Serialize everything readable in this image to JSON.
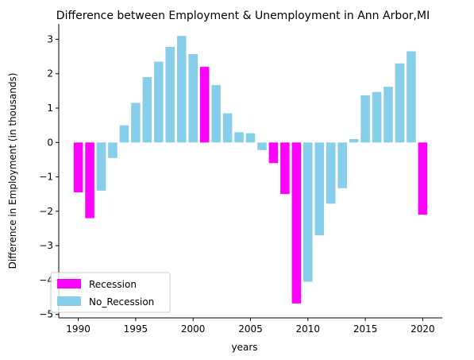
{
  "chart_data": {
    "type": "bar",
    "title": "Difference between Employment & Unemployment in Ann Arbor,MI",
    "xlabel": "years",
    "ylabel": "Difference in Employment (in thousands)",
    "x": [
      1990,
      1991,
      1992,
      1993,
      1994,
      1995,
      1996,
      1997,
      1998,
      1999,
      2000,
      2001,
      2002,
      2003,
      2004,
      2005,
      2006,
      2007,
      2008,
      2009,
      2010,
      2011,
      2012,
      2013,
      2014,
      2015,
      2016,
      2017,
      2018,
      2019,
      2020
    ],
    "values": [
      -1.45,
      -2.2,
      -1.4,
      -0.45,
      0.5,
      1.15,
      1.9,
      2.35,
      2.78,
      3.1,
      2.57,
      2.2,
      1.67,
      0.85,
      0.3,
      0.27,
      -0.22,
      -0.6,
      -1.5,
      -4.68,
      -4.05,
      -2.7,
      -1.78,
      -1.33,
      0.1,
      1.37,
      1.47,
      1.62,
      2.3,
      2.65,
      -2.1
    ],
    "recession": [
      true,
      true,
      false,
      false,
      false,
      false,
      false,
      false,
      false,
      false,
      false,
      true,
      false,
      false,
      false,
      false,
      false,
      true,
      true,
      true,
      false,
      false,
      false,
      false,
      false,
      false,
      false,
      false,
      false,
      false,
      true
    ],
    "colors": {
      "Recession": "#ff00ff",
      "No_Recession": "#87ceeb"
    },
    "xlim": [
      1988.3,
      2021.7
    ],
    "ylim": [
      -5.1,
      3.45
    ],
    "xticks": [
      1990,
      1995,
      2000,
      2005,
      2010,
      2015,
      2020
    ],
    "yticks": [
      -5,
      -4,
      -3,
      -2,
      -1,
      0,
      1,
      2,
      3
    ],
    "legend": {
      "position": "lower-left",
      "entries": [
        "Recession",
        "No_Recession"
      ]
    },
    "grid": false
  }
}
